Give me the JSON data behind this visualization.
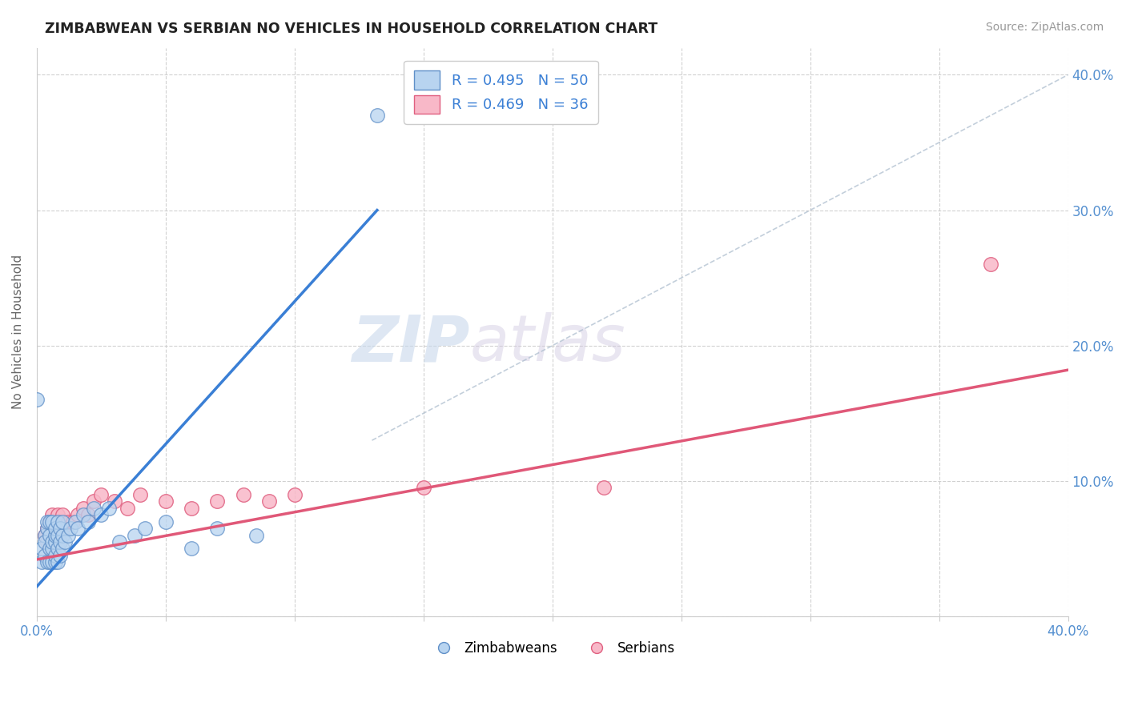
{
  "title": "ZIMBABWEAN VS SERBIAN NO VEHICLES IN HOUSEHOLD CORRELATION CHART",
  "source": "Source: ZipAtlas.com",
  "ylabel": "No Vehicles in Household",
  "watermark_zip": "ZIP",
  "watermark_atlas": "atlas",
  "xmin": 0.0,
  "xmax": 0.4,
  "ymin": 0.0,
  "ymax": 0.42,
  "xticks": [
    0.0,
    0.05,
    0.1,
    0.15,
    0.2,
    0.25,
    0.3,
    0.35,
    0.4
  ],
  "yticks": [
    0.0,
    0.1,
    0.2,
    0.3,
    0.4
  ],
  "legend_r1": "R = 0.495",
  "legend_n1": "N = 50",
  "legend_r2": "R = 0.469",
  "legend_n2": "N = 36",
  "color_zimbabwe_face": "#b8d4f0",
  "color_zimbabwe_edge": "#6090c8",
  "color_serbia_face": "#f8b8c8",
  "color_serbia_edge": "#e06080",
  "color_line_zimbabwe": "#3a7fd5",
  "color_line_serbia": "#e05878",
  "background_color": "#ffffff",
  "grid_color": "#cccccc",
  "tick_label_color": "#5590d0",
  "blue_line_x": [
    0.0,
    0.132
  ],
  "blue_line_y": [
    0.022,
    0.3
  ],
  "pink_line_x": [
    0.0,
    0.4
  ],
  "pink_line_y": [
    0.042,
    0.182
  ],
  "diag_line_x": [
    0.13,
    0.4
  ],
  "diag_line_y": [
    0.13,
    0.4
  ],
  "zimbabwe_x": [
    0.002,
    0.002,
    0.003,
    0.003,
    0.003,
    0.004,
    0.004,
    0.004,
    0.005,
    0.005,
    0.005,
    0.005,
    0.006,
    0.006,
    0.006,
    0.006,
    0.007,
    0.007,
    0.007,
    0.007,
    0.007,
    0.008,
    0.008,
    0.008,
    0.008,
    0.009,
    0.009,
    0.009,
    0.01,
    0.01,
    0.01,
    0.011,
    0.012,
    0.013,
    0.015,
    0.016,
    0.018,
    0.02,
    0.022,
    0.025,
    0.028,
    0.032,
    0.038,
    0.042,
    0.05,
    0.06,
    0.07,
    0.085,
    0.0,
    0.132
  ],
  "zimbabwe_y": [
    0.04,
    0.05,
    0.045,
    0.06,
    0.055,
    0.04,
    0.065,
    0.07,
    0.04,
    0.05,
    0.06,
    0.07,
    0.04,
    0.05,
    0.055,
    0.07,
    0.04,
    0.045,
    0.055,
    0.06,
    0.065,
    0.04,
    0.05,
    0.06,
    0.07,
    0.045,
    0.055,
    0.065,
    0.05,
    0.06,
    0.07,
    0.055,
    0.06,
    0.065,
    0.07,
    0.065,
    0.075,
    0.07,
    0.08,
    0.075,
    0.08,
    0.055,
    0.06,
    0.065,
    0.07,
    0.05,
    0.065,
    0.06,
    0.16,
    0.37
  ],
  "serbia_x": [
    0.003,
    0.004,
    0.004,
    0.005,
    0.005,
    0.006,
    0.006,
    0.006,
    0.007,
    0.007,
    0.008,
    0.008,
    0.008,
    0.009,
    0.009,
    0.01,
    0.01,
    0.012,
    0.014,
    0.016,
    0.018,
    0.02,
    0.022,
    0.025,
    0.03,
    0.035,
    0.04,
    0.05,
    0.06,
    0.07,
    0.08,
    0.09,
    0.1,
    0.15,
    0.22,
    0.37
  ],
  "serbia_y": [
    0.06,
    0.055,
    0.065,
    0.05,
    0.07,
    0.055,
    0.065,
    0.075,
    0.06,
    0.07,
    0.06,
    0.065,
    0.075,
    0.055,
    0.07,
    0.065,
    0.075,
    0.07,
    0.07,
    0.075,
    0.08,
    0.075,
    0.085,
    0.09,
    0.085,
    0.08,
    0.09,
    0.085,
    0.08,
    0.085,
    0.09,
    0.085,
    0.09,
    0.095,
    0.095,
    0.26
  ]
}
